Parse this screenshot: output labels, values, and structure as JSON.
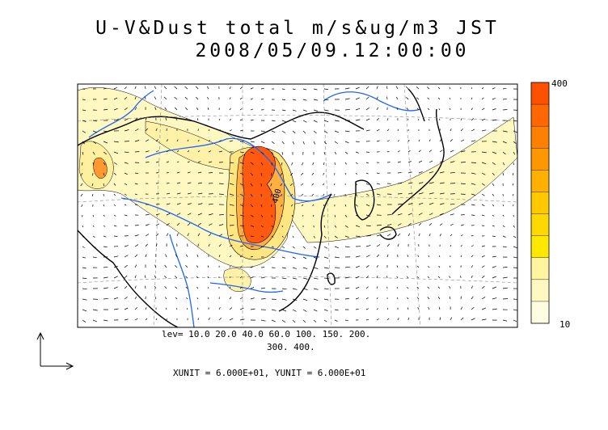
{
  "title": {
    "line1": "U-V&Dust total m/s&ug/m3 JST",
    "line2": "2008/05/09.12:00:00"
  },
  "contour_levels": {
    "line1": "lev= 10.0 20.0 40.0 60.0 100. 150. 200.",
    "line2": "300. 400."
  },
  "units_text": "XUNIT = 6.000E+01, YUNIT = 6.000E+01",
  "colorbar": {
    "max_label": "400",
    "min_label": "10",
    "colors": [
      "#ff5000",
      "#ff6800",
      "#ff8000",
      "#ff9800",
      "#ffb000",
      "#ffc800",
      "#ffd800",
      "#ffe800",
      "#fff4a0",
      "#fff8c0",
      "#fffde0"
    ]
  },
  "map_labels": {
    "inner_contour": "400"
  },
  "colors": {
    "coast": "#000000",
    "rivers": "#1e64ff",
    "vectors": "#000000"
  }
}
